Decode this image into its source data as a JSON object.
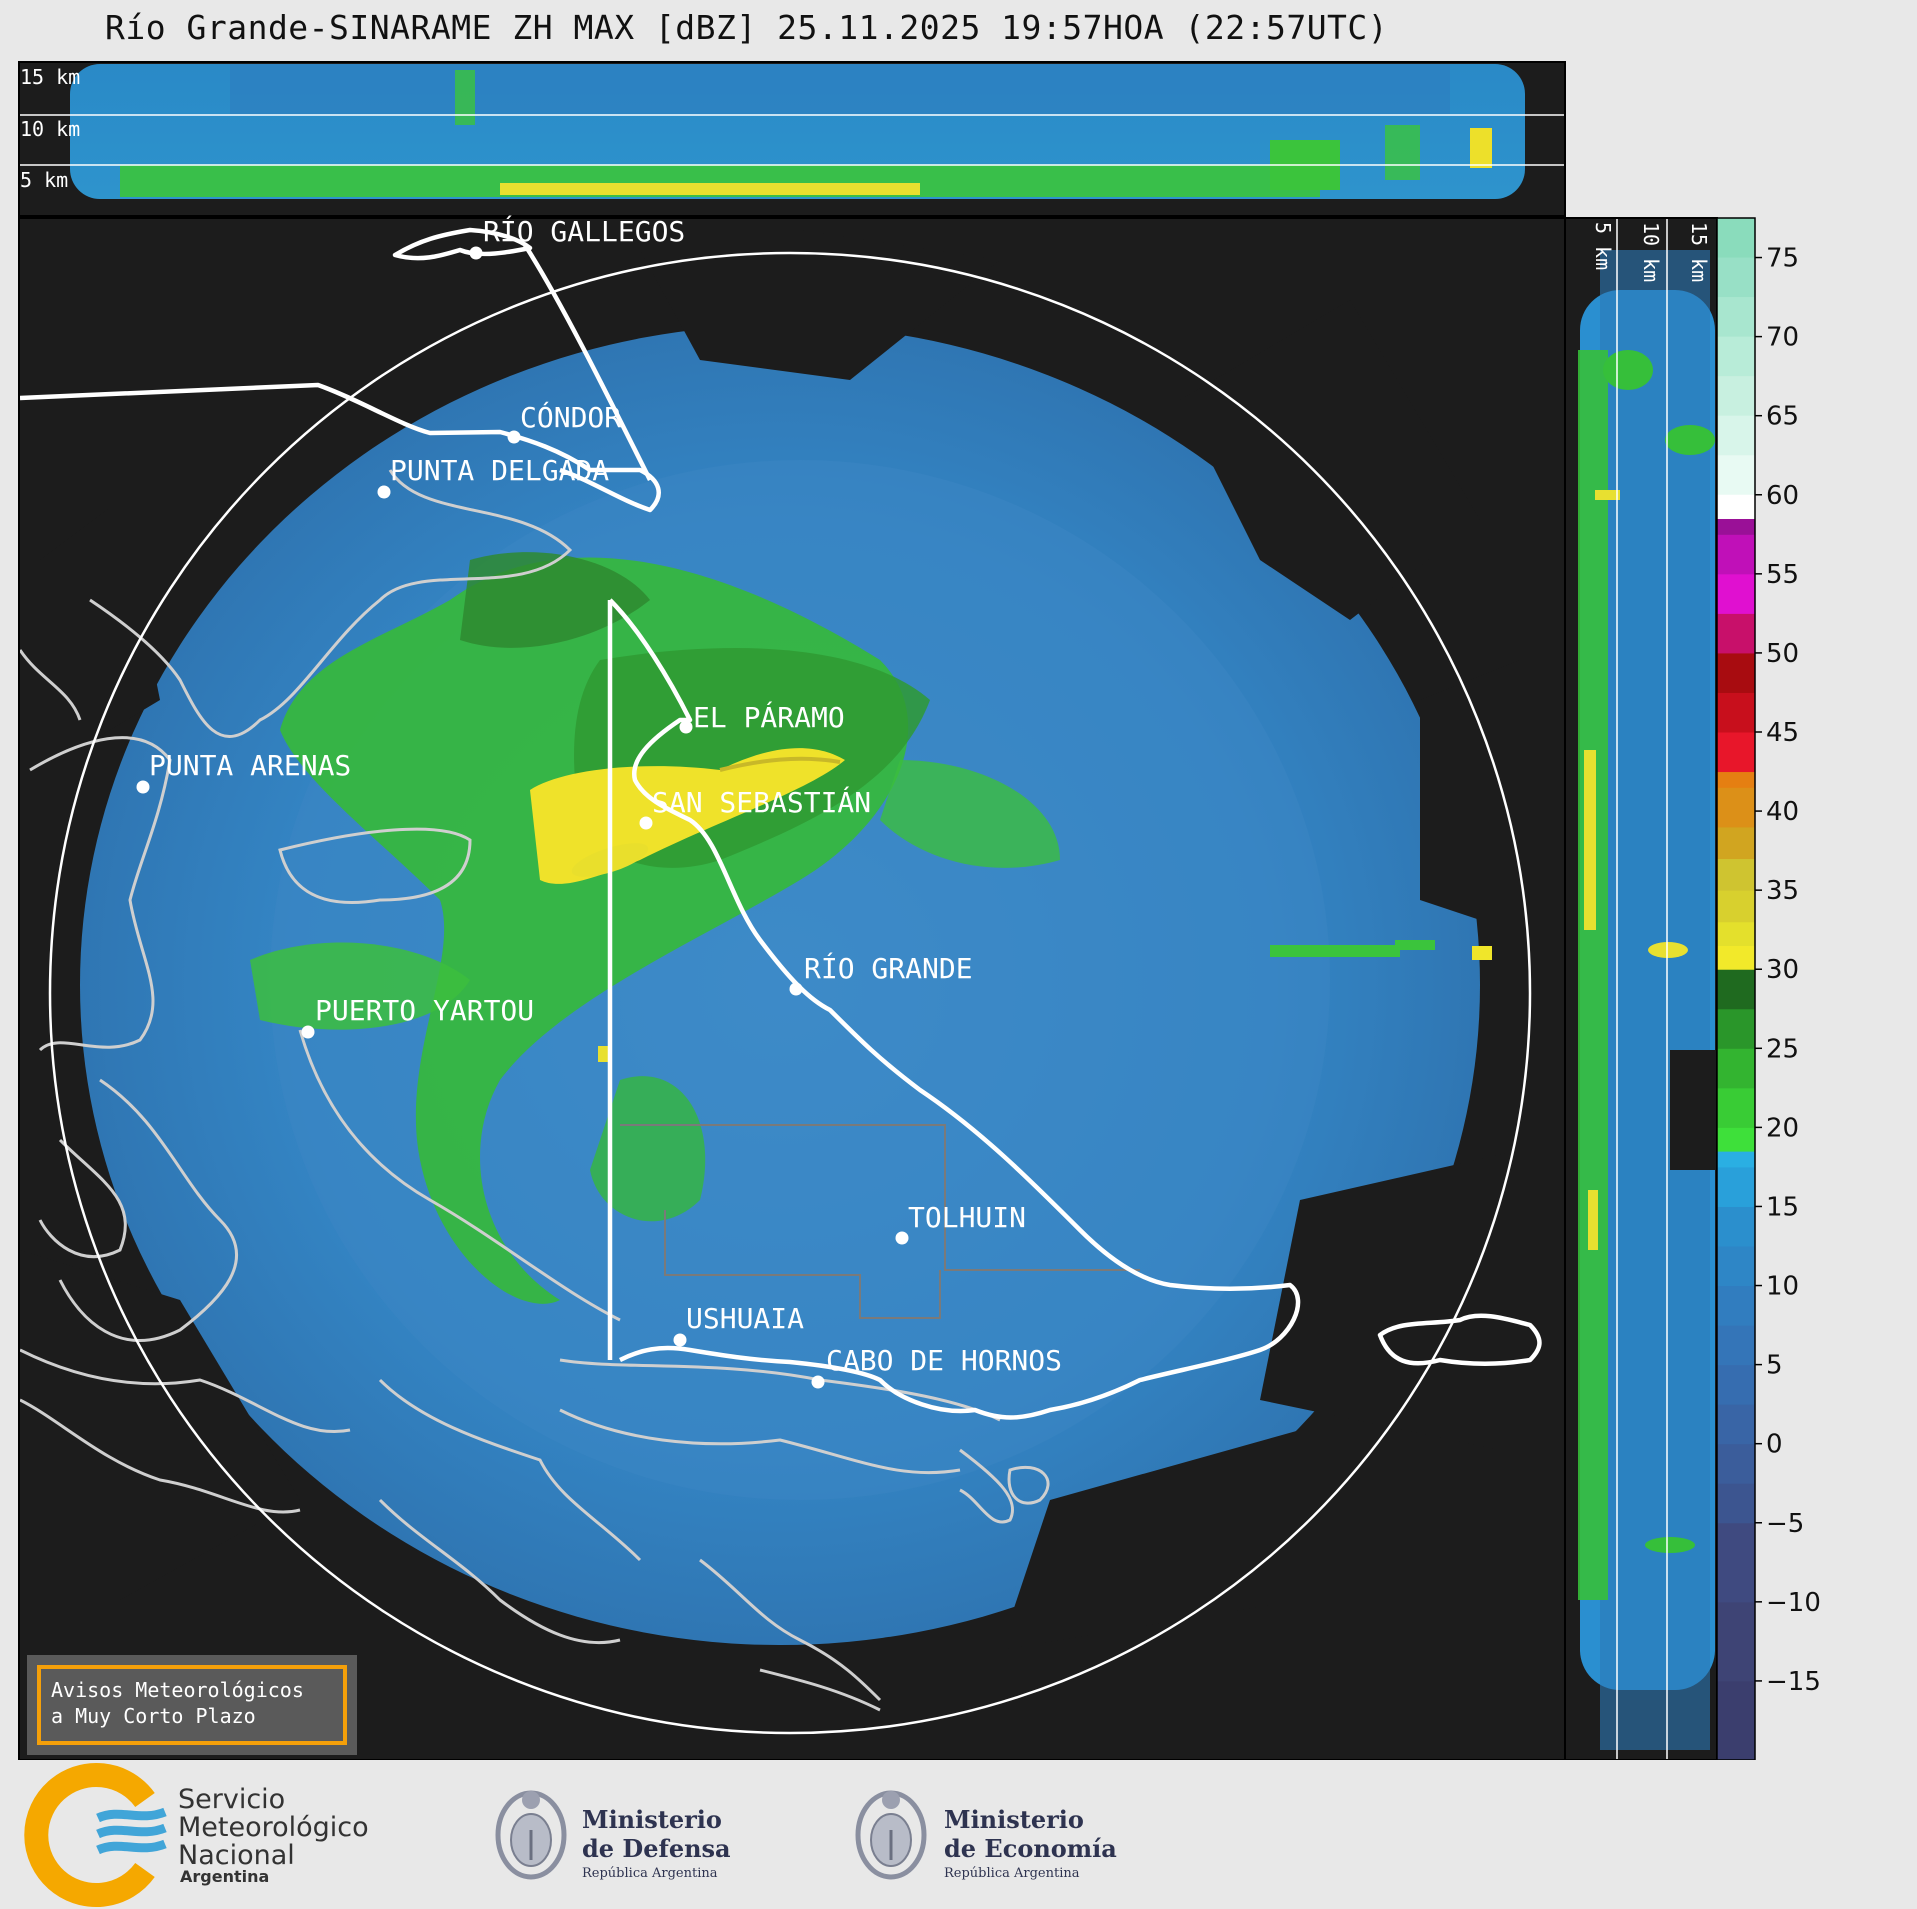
{
  "title": "Río Grande-SINARAME ZH MAX [dBZ] 25.11.2025 19:57HOA (22:57UTC)",
  "cross_section_top": {
    "labels": [
      "15 km",
      "10 km",
      "5 km"
    ]
  },
  "cross_section_right": {
    "labels": [
      "5 km",
      "10 km",
      "15 km"
    ]
  },
  "places": [
    {
      "name": "RÍO GALLEGOS"
    },
    {
      "name": "CÓNDOR"
    },
    {
      "name": "PUNTA DELGADA"
    },
    {
      "name": "EL PÁRAMO"
    },
    {
      "name": "PUNTA ARENAS"
    },
    {
      "name": "SAN SEBASTIÁN"
    },
    {
      "name": "RÍO GRANDE"
    },
    {
      "name": "PUERTO YARTOU"
    },
    {
      "name": "TOLHUIN"
    },
    {
      "name": "USHUAIA"
    },
    {
      "name": "CABO DE HORNOS"
    }
  ],
  "colorbar": {
    "unit": "dBZ",
    "ticks": [
      "75",
      "70",
      "65",
      "60",
      "55",
      "50",
      "45",
      "40",
      "35",
      "30",
      "25",
      "20",
      "15",
      "10",
      "5",
      "0",
      "−5",
      "−10",
      "−15"
    ],
    "colors": {
      "low": "#3a3f73",
      "mid_blue": "#2a7fc0",
      "cyan": "#29a9e0",
      "green": "#36c43a",
      "dark_green": "#1f6a1f",
      "yellow": "#f0e62a",
      "orange": "#e08a1a",
      "red": "#cc1020",
      "magenta": "#e010d0",
      "white": "#ffffff",
      "mint": "#88e0c0"
    }
  },
  "warning_box": {
    "line1": "Avisos Meteorológicos",
    "line2": "a Muy Corto Plazo",
    "border_color": "#f5a00a"
  },
  "logos": {
    "smn": {
      "line1": "Servicio",
      "line2": "Meteorológico",
      "line3": "Nacional",
      "line4": "Argentina"
    },
    "defensa": {
      "line1": "Ministerio",
      "line2": "de Defensa",
      "line3": "República Argentina"
    },
    "economia": {
      "line1": "Ministerio",
      "line2": "de Economía",
      "line3": "República Argentina"
    }
  }
}
